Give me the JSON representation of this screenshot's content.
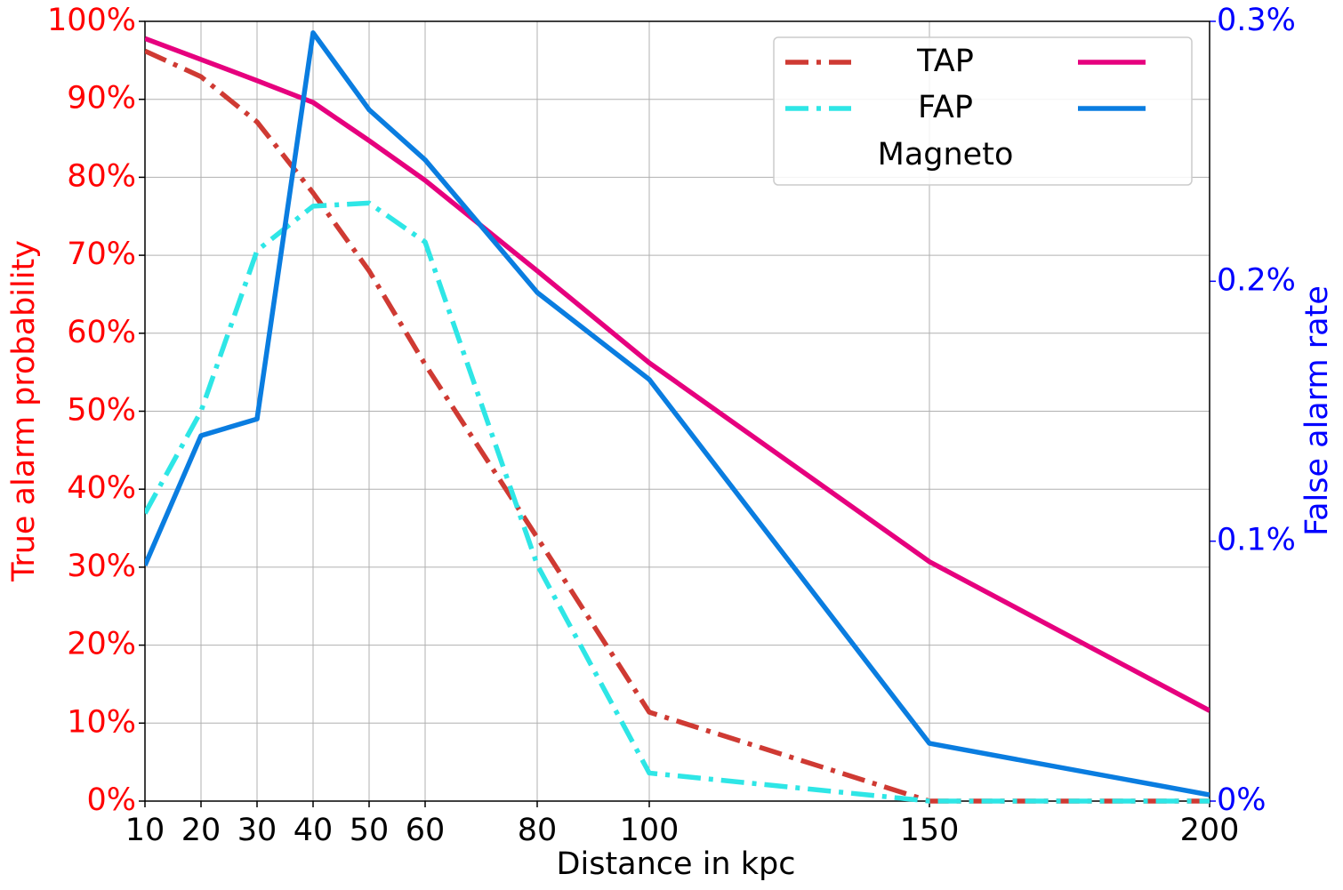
{
  "chart_data": {
    "type": "line",
    "xlabel": "Distance in kpc",
    "ylabel": "True alarm probability",
    "y2label": "False alarm rate",
    "x": [
      10,
      20,
      30,
      40,
      50,
      60,
      80,
      100,
      150,
      200
    ],
    "xlim": [
      10,
      200
    ],
    "xticks": [
      10,
      20,
      30,
      40,
      50,
      60,
      80,
      100,
      150,
      200
    ],
    "ylim": [
      0,
      100
    ],
    "yticks": [
      {
        "value": 0,
        "label": "0%"
      },
      {
        "value": 10,
        "label": "10%"
      },
      {
        "value": 20,
        "label": "20%"
      },
      {
        "value": 30,
        "label": "30%"
      },
      {
        "value": 40,
        "label": "40%"
      },
      {
        "value": 50,
        "label": "50%"
      },
      {
        "value": 60,
        "label": "60%"
      },
      {
        "value": 70,
        "label": "70%"
      },
      {
        "value": 80,
        "label": "80%"
      },
      {
        "value": 90,
        "label": "90%"
      },
      {
        "value": 100,
        "label": "100%"
      }
    ],
    "y2lim": [
      0,
      0.3
    ],
    "y2ticks": [
      {
        "value": 0,
        "label": "0%"
      },
      {
        "value": 0.1,
        "label": "0.1%"
      },
      {
        "value": 0.2,
        "label": "0.2%"
      },
      {
        "value": 0.3,
        "label": "0.3%"
      }
    ],
    "ylabel_color": "#ff0000",
    "y2label_color": "#0000ff",
    "grid": true,
    "legend_position": "upper right",
    "legend_note": "Magneto",
    "series": [
      {
        "name": "TAP",
        "color": "#cf3a33",
        "dash": true,
        "values": [
          96.2,
          92.9,
          87.1,
          78.0,
          68.0,
          56.0,
          33.8,
          11.4,
          0,
          0
        ]
      },
      {
        "name": "FAP",
        "color": "#2ee6e6",
        "dash": true,
        "values": [
          36.9,
          50.0,
          70.6,
          76.3,
          76.7,
          71.7,
          30.3,
          3.6,
          0,
          0
        ]
      },
      {
        "color": "#e6007e",
        "dash": false,
        "values": [
          97.8,
          95.1,
          92.4,
          89.6,
          84.7,
          79.6,
          68.0,
          56.2,
          30.7,
          11.6
        ]
      },
      {
        "color": "#0a7de0",
        "dash": false,
        "axis": "y2",
        "values": [
          0.0907,
          0.1406,
          0.147,
          0.2956,
          0.266,
          0.2467,
          0.1957,
          0.1622,
          0.0222,
          0.0024
        ]
      }
    ]
  }
}
